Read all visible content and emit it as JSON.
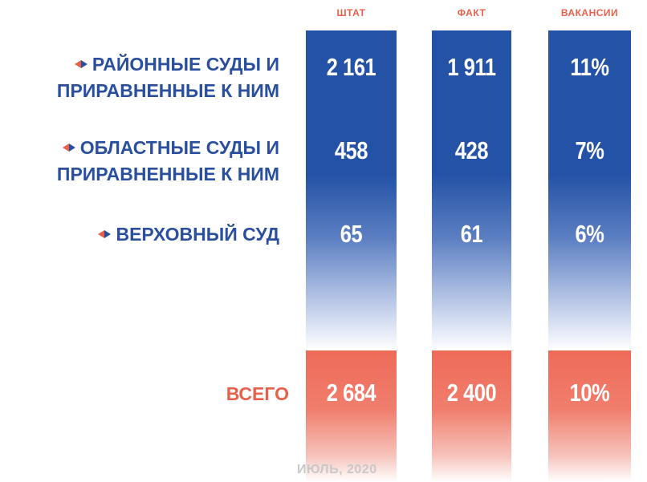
{
  "headers": [
    "ШТАТ",
    "ФАКТ",
    "ВАКАНСИИ"
  ],
  "rows": [
    {
      "label": [
        "РАЙОННЫЕ СУДЫ И",
        "ПРИРАВНЕННЫЕ К НИМ"
      ],
      "cells": [
        "2 161",
        "1 911",
        "11%"
      ]
    },
    {
      "label": [
        "ОБЛАСТНЫЕ СУДЫ И",
        "ПРИРАВНЕННЫЕ К НИМ"
      ],
      "cells": [
        "458",
        "428",
        "7%"
      ]
    },
    {
      "label": [
        "ВЕРХОВНЫЙ СУД"
      ],
      "cells": [
        "65",
        "61",
        "6%"
      ]
    }
  ],
  "total": {
    "label": "ВСЕГО",
    "cells": [
      "2 684",
      "2 400",
      "10%"
    ]
  },
  "footer": "ИЮЛЬ, 2020"
}
